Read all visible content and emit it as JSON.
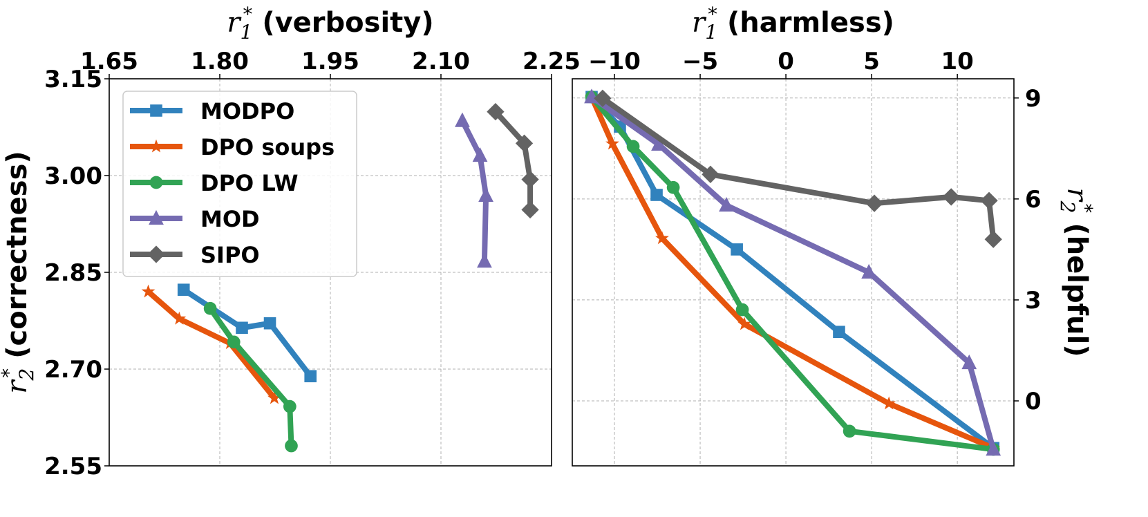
{
  "chart_data": [
    {
      "type": "line",
      "panel": "left",
      "title": "",
      "xlabel_var": "r",
      "xlabel_sub": "1",
      "xlabel_sup": "*",
      "xlabel_text": "(verbosity)",
      "ylabel_var": "r",
      "ylabel_sub": "2",
      "ylabel_sup": "*",
      "ylabel_text": "(correctness)",
      "xaxis_position": "top",
      "yaxis_position": "left",
      "xlim": [
        1.65,
        2.25
      ],
      "ylim": [
        2.55,
        3.15
      ],
      "xticks": [
        "1.65",
        "1.80",
        "1.95",
        "2.10",
        "2.25"
      ],
      "yticks": [
        "2.55",
        "2.70",
        "2.85",
        "3.00",
        "3.15"
      ],
      "grid": true,
      "legend_position": "top-left",
      "series": [
        {
          "name": "MODPO",
          "color": "#3182bd",
          "marker": "square",
          "x": [
            1.751,
            1.83,
            1.868,
            1.923
          ],
          "y": [
            2.823,
            2.764,
            2.771,
            2.689
          ]
        },
        {
          "name": "DPO soups",
          "color": "#e6550d",
          "marker": "star",
          "x": [
            1.703,
            1.745,
            1.814,
            1.874
          ],
          "y": [
            2.82,
            2.778,
            2.74,
            2.655
          ]
        },
        {
          "name": "DPO LW",
          "color": "#31a354",
          "marker": "circle",
          "x": [
            1.787,
            1.819,
            1.895,
            1.897
          ],
          "y": [
            2.794,
            2.742,
            2.642,
            2.581
          ]
        },
        {
          "name": "MOD",
          "color": "#756bb1",
          "marker": "triangle",
          "x": [
            2.129,
            2.153,
            2.161,
            2.159
          ],
          "y": [
            3.085,
            3.031,
            2.969,
            2.867
          ]
        },
        {
          "name": "SIPO",
          "color": "#636363",
          "marker": "diamond",
          "x": [
            2.174,
            2.213,
            2.221,
            2.221
          ],
          "y": [
            3.099,
            3.05,
            2.994,
            2.947
          ]
        }
      ]
    },
    {
      "type": "line",
      "panel": "right",
      "title": "",
      "xlabel_var": "r",
      "xlabel_sub": "1",
      "xlabel_sup": "*",
      "xlabel_text": "(harmless)",
      "ylabel_var": "r",
      "ylabel_sub": "2",
      "ylabel_sup": "*",
      "ylabel_text": "(helpful)",
      "xaxis_position": "top",
      "yaxis_position": "right",
      "xlim": [
        -12.46,
        13.3
      ],
      "ylim": [
        -1.93,
        9.57
      ],
      "xticks": [
        "−10",
        "−5",
        "0",
        "5",
        "10"
      ],
      "xtick_values": [
        -10,
        -5,
        0,
        5,
        10
      ],
      "yticks": [
        "0",
        "3",
        "6",
        "9"
      ],
      "ytick_values": [
        0,
        3,
        6,
        9
      ],
      "grid": true,
      "series": [
        {
          "name": "MODPO",
          "color": "#3182bd",
          "marker": "square",
          "x": [
            -11.33,
            -9.68,
            -7.54,
            -2.86,
            3.1,
            12.1
          ],
          "y": [
            9.03,
            8.15,
            6.12,
            4.5,
            2.05,
            -1.4
          ]
        },
        {
          "name": "DPO soups",
          "color": "#e6550d",
          "marker": "star",
          "x": [
            -11.33,
            -10.12,
            -7.22,
            -2.42,
            6.01,
            12.1
          ],
          "y": [
            9.03,
            7.64,
            4.83,
            2.28,
            -0.08,
            -1.4
          ]
        },
        {
          "name": "DPO LW",
          "color": "#31a354",
          "marker": "circle",
          "x": [
            -11.33,
            -8.91,
            -6.57,
            -2.54,
            3.71,
            12.1
          ],
          "y": [
            9.03,
            7.56,
            6.34,
            2.71,
            -0.9,
            -1.44
          ]
        },
        {
          "name": "MOD",
          "color": "#756bb1",
          "marker": "triangle",
          "x": [
            -11.33,
            -7.42,
            -3.47,
            4.84,
            10.69,
            12.1
          ],
          "y": [
            9.03,
            7.62,
            5.81,
            3.82,
            1.13,
            -1.44
          ]
        },
        {
          "name": "SIPO",
          "color": "#636363",
          "marker": "diamond",
          "x": [
            -10.69,
            -4.4,
            5.16,
            9.64,
            11.85,
            12.1
          ],
          "y": [
            8.99,
            6.73,
            5.87,
            6.06,
            5.95,
            4.8
          ]
        }
      ]
    }
  ]
}
